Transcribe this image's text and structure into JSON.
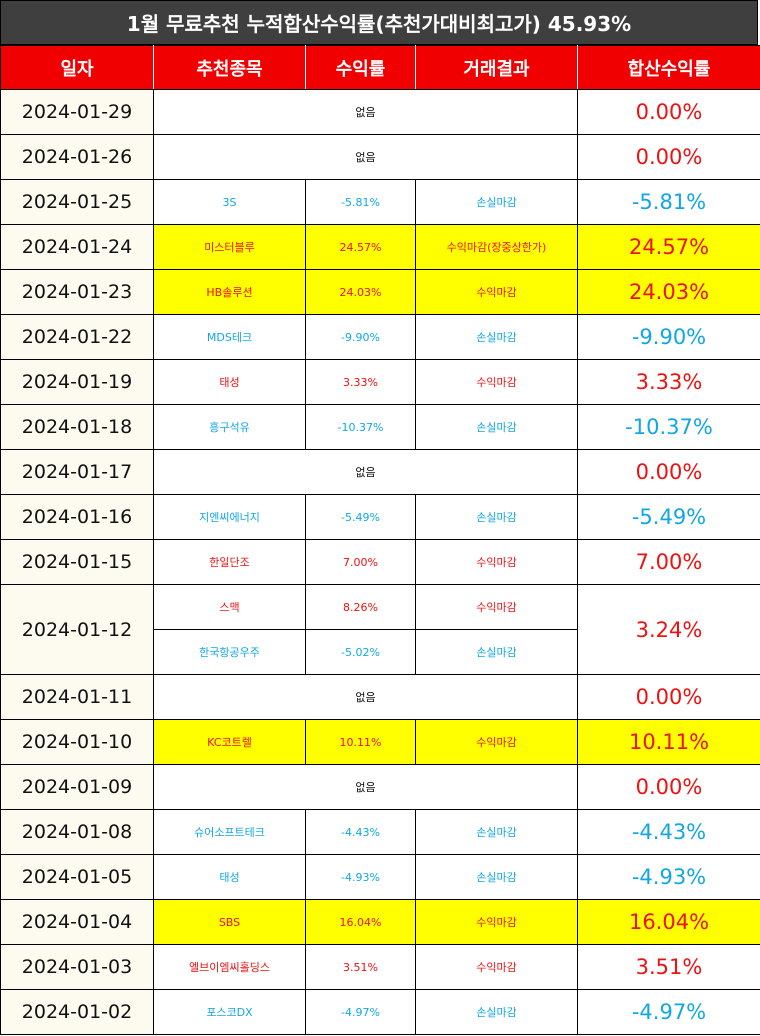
{
  "title": "1월 무료추천 누적합산수익률(추천가대비최고가) 45.93%",
  "headers": [
    "일자",
    "추천종목",
    "수익률",
    "거래결과",
    "합산수익률"
  ],
  "colors": {
    "header_bg": "#f00000",
    "title_bg": "#3f3f3f",
    "highlight": "#ffff00",
    "gain": "#ee1111",
    "loss": "#11a7e6"
  },
  "rows": [
    {
      "date": "2024-01-29",
      "none": "없음",
      "total": "0.00%",
      "total_color": "red"
    },
    {
      "date": "2024-01-26",
      "none": "없음",
      "total": "0.00%",
      "total_color": "red"
    },
    {
      "date": "2024-01-25",
      "stock": "3S",
      "rate": "-5.81%",
      "result": "손실마감",
      "color": "blue",
      "total": "-5.81%",
      "total_color": "blue"
    },
    {
      "date": "2024-01-24",
      "stock": "미스터블루",
      "rate": "24.57%",
      "result": "수익마감(장중상한가)",
      "color": "red",
      "total": "24.57%",
      "total_color": "red",
      "highlight": true
    },
    {
      "date": "2024-01-23",
      "stock": "HB솔루션",
      "rate": "24.03%",
      "result": "수익마감",
      "color": "red",
      "total": "24.03%",
      "total_color": "red",
      "highlight": true
    },
    {
      "date": "2024-01-22",
      "stock": "MDS테크",
      "rate": "-9.90%",
      "result": "손실마감",
      "color": "blue",
      "total": "-9.90%",
      "total_color": "blue"
    },
    {
      "date": "2024-01-19",
      "stock": "태성",
      "rate": "3.33%",
      "result": "수익마감",
      "color": "red",
      "total": "3.33%",
      "total_color": "red"
    },
    {
      "date": "2024-01-18",
      "stock": "흥구석유",
      "rate": "-10.37%",
      "result": "손실마감",
      "color": "blue",
      "total": "-10.37%",
      "total_color": "blue"
    },
    {
      "date": "2024-01-17",
      "none": "없음",
      "total": "0.00%",
      "total_color": "red"
    },
    {
      "date": "2024-01-16",
      "stock": "지엔씨에너지",
      "rate": "-5.49%",
      "result": "손실마감",
      "color": "blue",
      "total": "-5.49%",
      "total_color": "blue"
    },
    {
      "date": "2024-01-15",
      "stock": "한일단조",
      "rate": "7.00%",
      "result": "수익마감",
      "color": "red",
      "total": "7.00%",
      "total_color": "red"
    },
    {
      "date": "2024-01-12",
      "multi": [
        {
          "stock": "스맥",
          "rate": "8.26%",
          "result": "수익마감",
          "color": "red"
        },
        {
          "stock": "한국항공우주",
          "rate": "-5.02%",
          "result": "손실마감",
          "color": "blue"
        }
      ],
      "total": "3.24%",
      "total_color": "red"
    },
    {
      "date": "2024-01-11",
      "none": "없음",
      "total": "0.00%",
      "total_color": "red"
    },
    {
      "date": "2024-01-10",
      "stock": "KC코트렐",
      "rate": "10.11%",
      "result": "수익마감",
      "color": "red",
      "total": "10.11%",
      "total_color": "red",
      "highlight": true
    },
    {
      "date": "2024-01-09",
      "none": "없음",
      "total": "0.00%",
      "total_color": "red"
    },
    {
      "date": "2024-01-08",
      "stock": "슈어소프트테크",
      "rate": "-4.43%",
      "result": "손실마감",
      "color": "blue",
      "total": "-4.43%",
      "total_color": "blue"
    },
    {
      "date": "2024-01-05",
      "stock": "태성",
      "rate": "-4.93%",
      "result": "손실마감",
      "color": "blue",
      "total": "-4.93%",
      "total_color": "blue"
    },
    {
      "date": "2024-01-04",
      "stock": "SBS",
      "rate": "16.04%",
      "result": "수익마감",
      "color": "red",
      "total": "16.04%",
      "total_color": "red",
      "highlight": true
    },
    {
      "date": "2024-01-03",
      "stock": "엘브이엠씨홀딩스",
      "rate": "3.51%",
      "result": "수익마감",
      "color": "red",
      "total": "3.51%",
      "total_color": "red"
    },
    {
      "date": "2024-01-02",
      "stock": "포스코DX",
      "rate": "-4.97%",
      "result": "손실마감",
      "color": "blue",
      "total": "-4.97%",
      "total_color": "blue"
    }
  ]
}
